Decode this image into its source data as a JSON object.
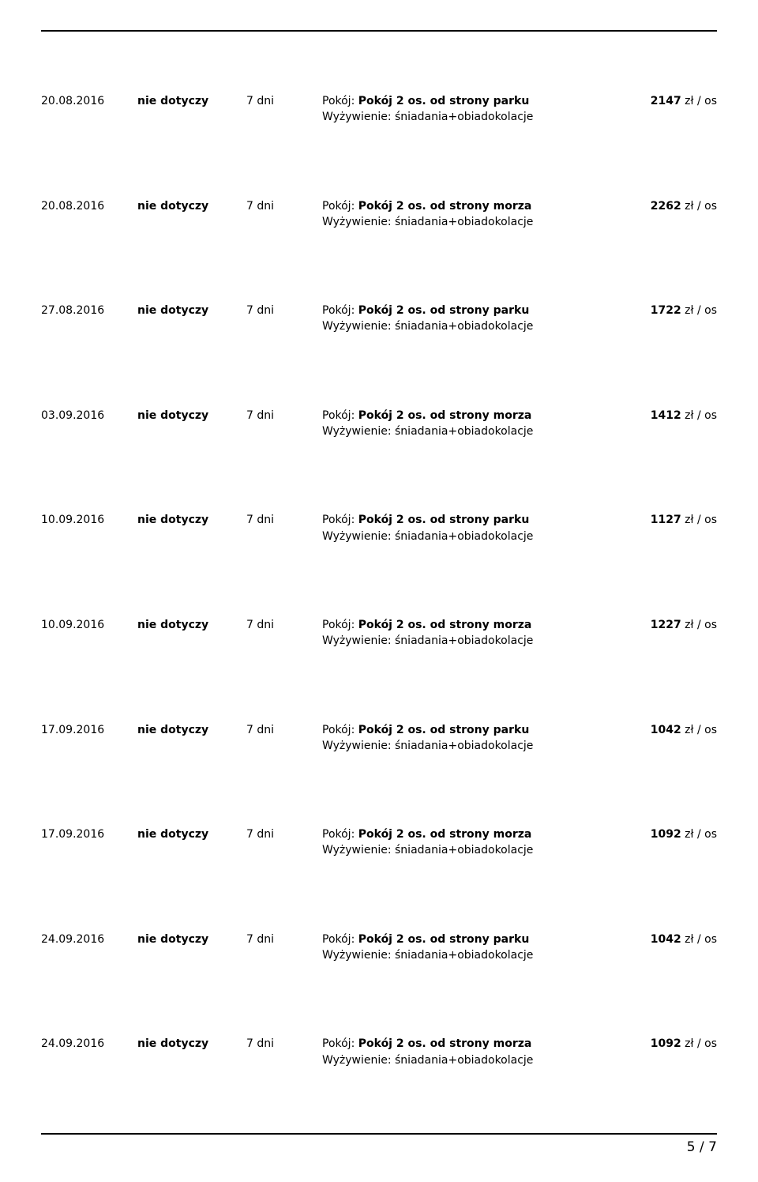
{
  "labels": {
    "room_prefix": "Pokój: ",
    "meal_prefix": "Wyżywienie: ",
    "meal_value": "śniadania+obiadokolacje",
    "price_unit": " zł / os"
  },
  "columns": {
    "date_width": 122,
    "status_width": 138,
    "duration_width": 96,
    "desc_width": 380
  },
  "style": {
    "background": "#ffffff",
    "text_color": "#000000",
    "rule_color": "#000000",
    "font_size_row": 14,
    "font_size_footer": 17,
    "row_gap": 92
  },
  "rows": [
    {
      "date": "20.08.2016",
      "status": "nie dotyczy",
      "duration": "7 dni",
      "room": "Pokój 2 os. od strony parku",
      "price": "2147"
    },
    {
      "date": "20.08.2016",
      "status": "nie dotyczy",
      "duration": "7 dni",
      "room": "Pokój 2 os. od strony morza",
      "price": "2262"
    },
    {
      "date": "27.08.2016",
      "status": "nie dotyczy",
      "duration": "7 dni",
      "room": "Pokój 2 os. od strony parku",
      "price": "1722"
    },
    {
      "date": "03.09.2016",
      "status": "nie dotyczy",
      "duration": "7 dni",
      "room": "Pokój 2 os. od strony morza",
      "price": "1412"
    },
    {
      "date": "10.09.2016",
      "status": "nie dotyczy",
      "duration": "7 dni",
      "room": "Pokój 2 os. od strony parku",
      "price": "1127"
    },
    {
      "date": "10.09.2016",
      "status": "nie dotyczy",
      "duration": "7 dni",
      "room": "Pokój 2 os. od strony morza",
      "price": "1227"
    },
    {
      "date": "17.09.2016",
      "status": "nie dotyczy",
      "duration": "7 dni",
      "room": "Pokój 2 os. od strony parku",
      "price": "1042"
    },
    {
      "date": "17.09.2016",
      "status": "nie dotyczy",
      "duration": "7 dni",
      "room": "Pokój 2 os. od strony morza",
      "price": "1092"
    },
    {
      "date": "24.09.2016",
      "status": "nie dotyczy",
      "duration": "7 dni",
      "room": "Pokój 2 os. od strony parku",
      "price": "1042"
    },
    {
      "date": "24.09.2016",
      "status": "nie dotyczy",
      "duration": "7 dni",
      "room": "Pokój 2 os. od strony morza",
      "price": "1092"
    }
  ],
  "footer": {
    "page_current": "5",
    "page_sep": " / ",
    "page_total": "7"
  }
}
